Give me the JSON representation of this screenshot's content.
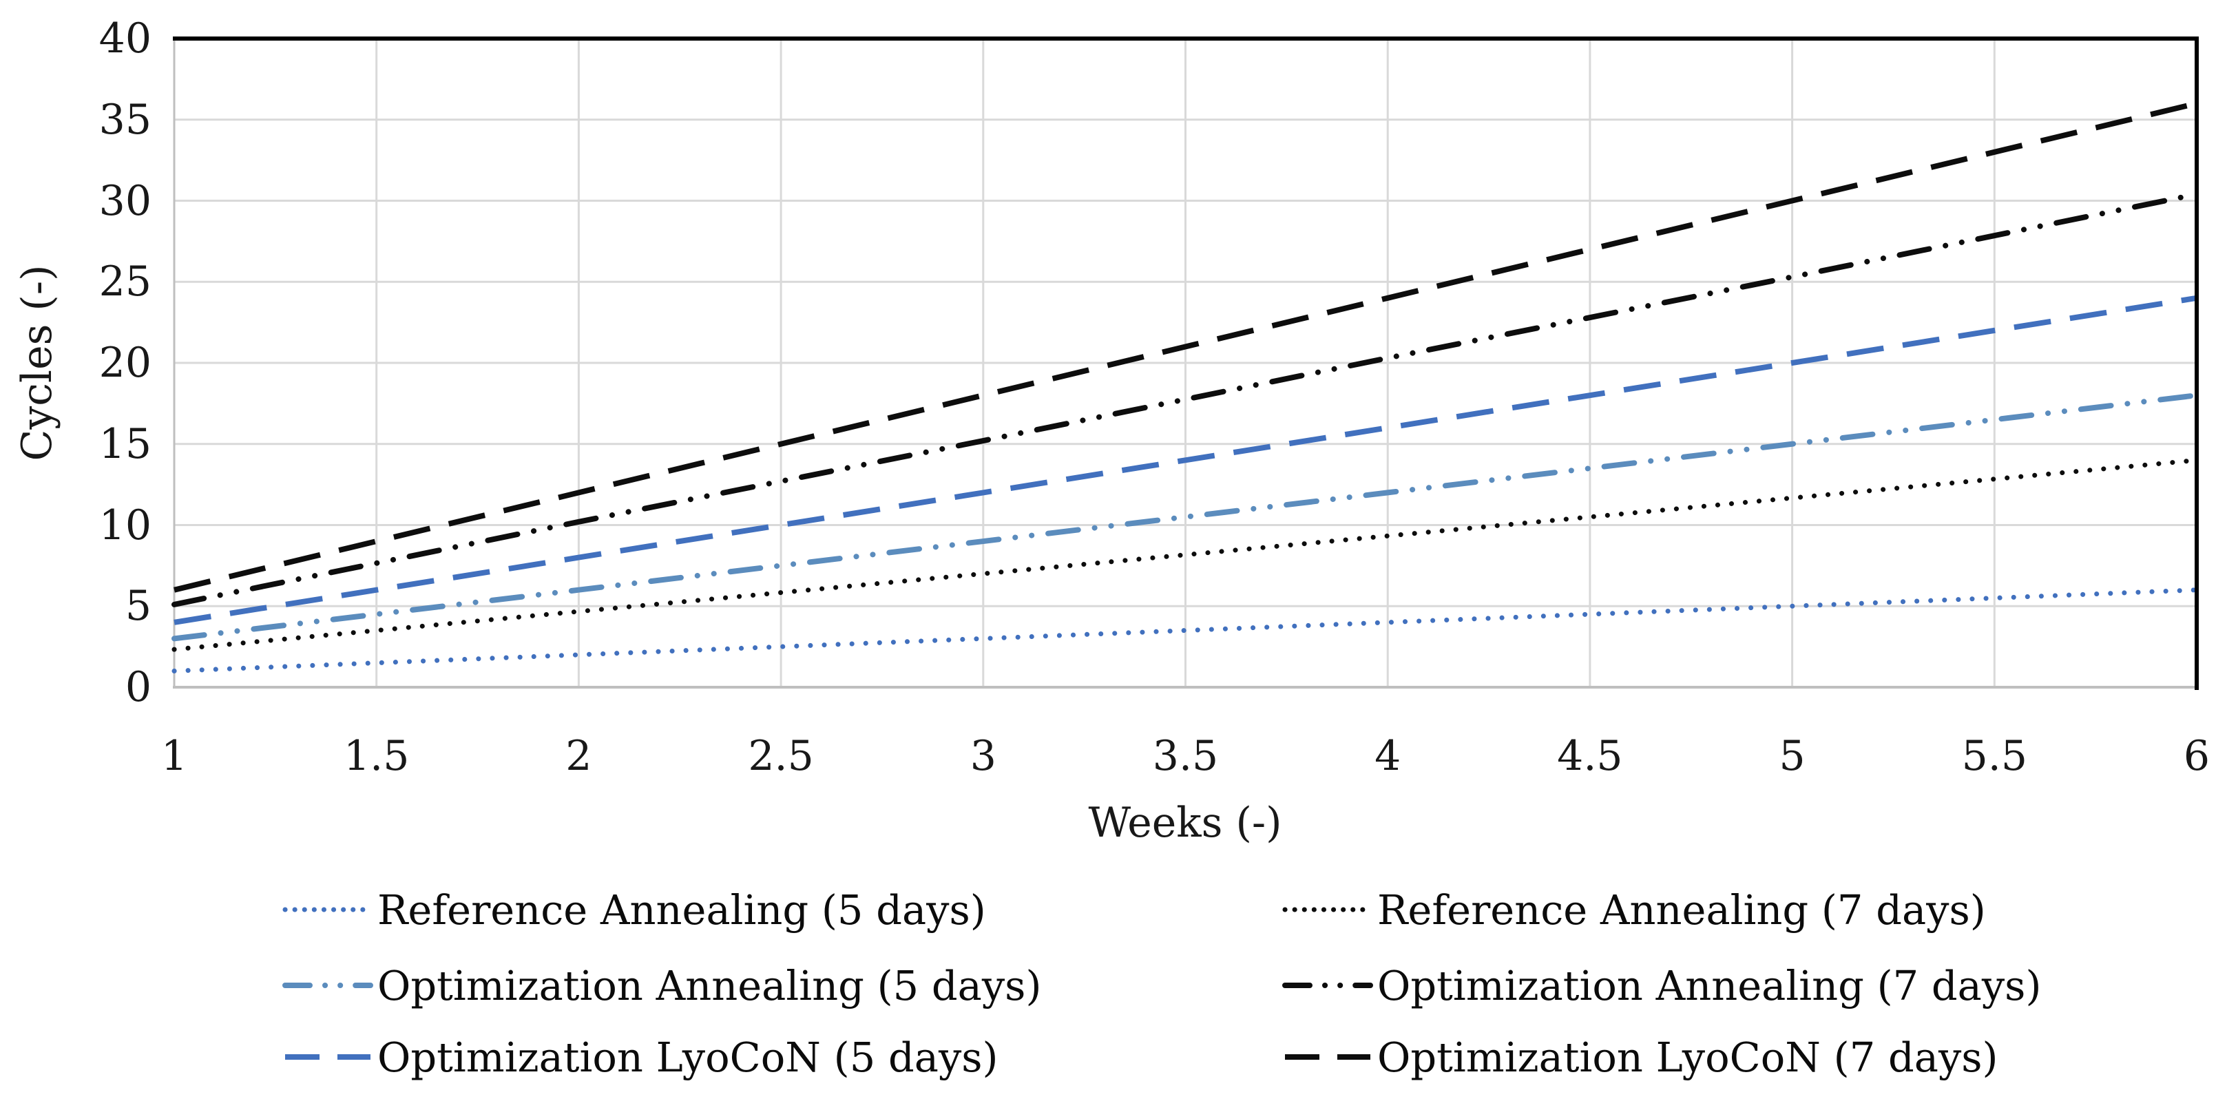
{
  "chart_data": {
    "type": "line",
    "title": "",
    "xlabel": "Weeks (-)",
    "ylabel": "Cycles (-)",
    "x": [
      1,
      2,
      3,
      4,
      5,
      6
    ],
    "xlim": [
      1,
      6
    ],
    "ylim": [
      0,
      40
    ],
    "x_tick_values": [
      1,
      1.5,
      2,
      2.5,
      3,
      3.5,
      4,
      4.5,
      5,
      5.5,
      6
    ],
    "x_tick_labels": [
      "1",
      "1.5",
      "2",
      "2.5",
      "3",
      "3.5",
      "4",
      "4.5",
      "5",
      "5.5",
      "6"
    ],
    "y_tick_values": [
      0,
      5,
      10,
      15,
      20,
      25,
      30,
      35,
      40
    ],
    "y_tick_labels": [
      "0",
      "5",
      "10",
      "15",
      "20",
      "25",
      "30",
      "35",
      "40"
    ],
    "grid": "both",
    "legend_position": "bottom",
    "series": [
      {
        "name": "Reference Annealing (5 days)",
        "color": "#4170BE",
        "dash": "dot",
        "values": [
          1,
          2,
          3,
          4,
          5,
          6
        ]
      },
      {
        "name": "Reference Annealing (7 days)",
        "color": "#0D0D0D",
        "dash": "dot",
        "values": [
          2.33,
          4.67,
          7,
          9.33,
          11.67,
          14
        ]
      },
      {
        "name": "Optimization Annealing (5 days)",
        "color": "#5B8CBD",
        "dash": "dash-dot-dot",
        "values": [
          3,
          6,
          9,
          12,
          15,
          18
        ]
      },
      {
        "name": "Optimization Annealing (7 days)",
        "color": "#0D0D0D",
        "dash": "dash-dot-dot",
        "values": [
          5.1,
          10.2,
          15.2,
          20.3,
          25.3,
          30.4
        ]
      },
      {
        "name": "Optimization LyoCoN (5 days)",
        "color": "#4170BE",
        "dash": "dash",
        "values": [
          4,
          8,
          12,
          16,
          20,
          24
        ]
      },
      {
        "name": "Optimization LyoCoN (7 days)",
        "color": "#0D0D0D",
        "dash": "dash",
        "values": [
          6,
          12,
          18,
          24,
          30,
          36
        ]
      }
    ]
  },
  "colors": {
    "gridline": "#D9D9D9",
    "axis_line": "#BFBFBF",
    "plot_border": "#000000",
    "background": "#FFFFFF"
  }
}
